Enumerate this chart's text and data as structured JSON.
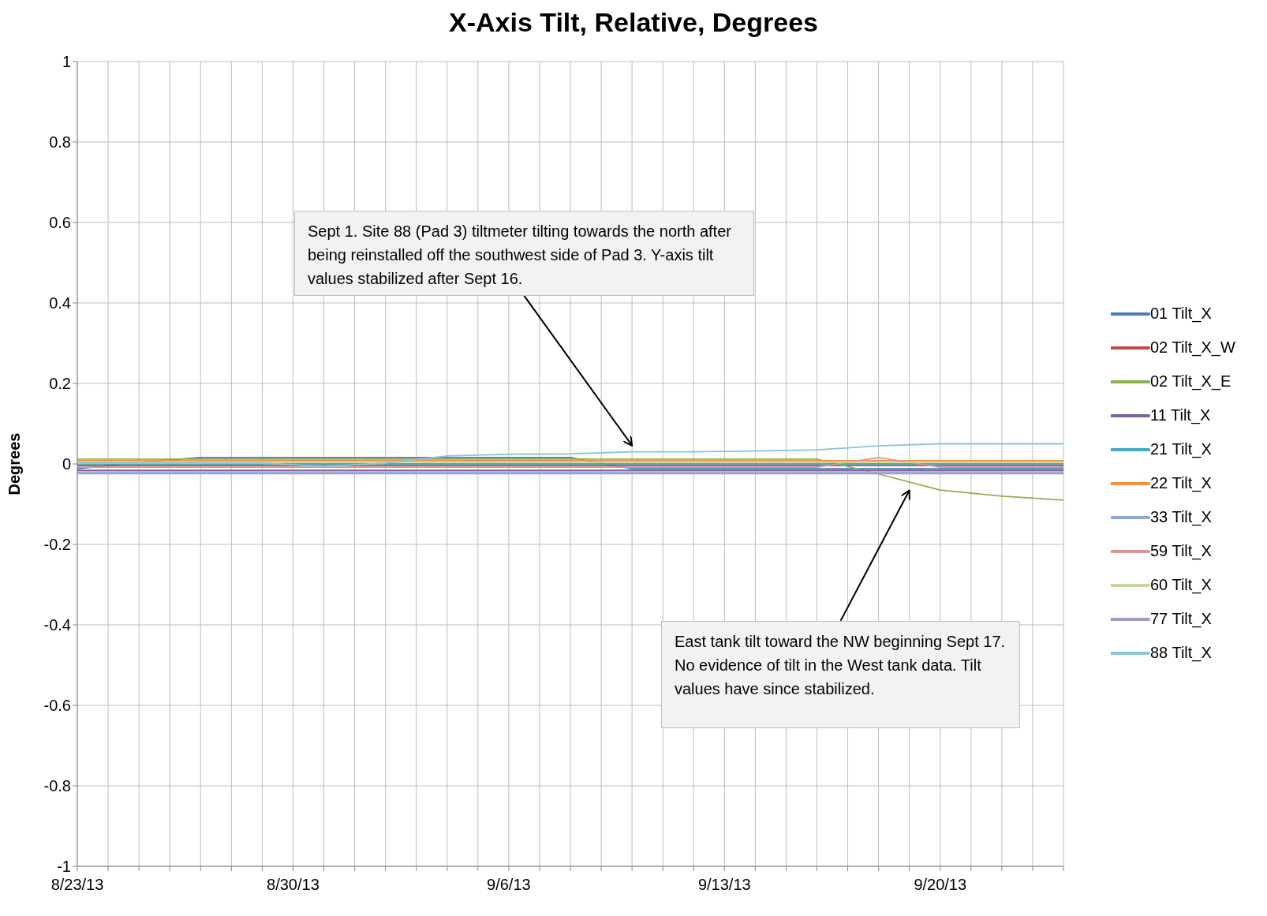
{
  "chart_data": {
    "type": "line",
    "title": "X-Axis Tilt, Relative, Degrees",
    "ylabel": "Degrees",
    "x": [
      "--08-23",
      "--08-25",
      "--08-27",
      "--08-29",
      "--08-31",
      "--09-02",
      "--09-04",
      "--09-06",
      "--09-08",
      "--09-10",
      "--09-12",
      "--09-14",
      "--09-16",
      "--09-18",
      "--09-20",
      "--09-22",
      "--09-24"
    ],
    "series": [
      {
        "name": "01 Tilt_X",
        "color": "#4a7ebb",
        "values": [
          -0.012,
          0.004,
          0.016,
          0.016,
          0.016,
          0.016,
          0.016,
          0.016,
          0.016,
          -0.012,
          -0.012,
          -0.012,
          -0.012,
          -0.012,
          -0.012,
          -0.012,
          -0.012
        ]
      },
      {
        "name": "02 Tilt_X_W",
        "color": "#be4b48",
        "values": [
          -0.004,
          -0.004,
          -0.004,
          -0.004,
          -0.004,
          -0.004,
          -0.004,
          -0.004,
          -0.004,
          -0.004,
          -0.004,
          -0.004,
          -0.004,
          -0.004,
          -0.004,
          -0.004,
          -0.004
        ]
      },
      {
        "name": "02 Tilt_X_E",
        "color": "#8eb055",
        "values": [
          0.012,
          0.012,
          0.012,
          0.012,
          0.012,
          0.012,
          0.012,
          0.012,
          0.012,
          0.012,
          0.012,
          0.012,
          0.012,
          -0.025,
          -0.065,
          -0.08,
          -0.09
        ]
      },
      {
        "name": "11 Tilt_X",
        "color": "#7d60a0",
        "values": [
          -0.016,
          -0.016,
          -0.016,
          -0.016,
          -0.016,
          -0.016,
          -0.016,
          -0.016,
          -0.016,
          -0.016,
          -0.016,
          -0.016,
          -0.016,
          -0.016,
          -0.016,
          -0.016,
          -0.016
        ]
      },
      {
        "name": "21 Tilt_X",
        "color": "#46aac5",
        "values": [
          0,
          0,
          0,
          0,
          0,
          0,
          0,
          0,
          0,
          0,
          0,
          0,
          0,
          0,
          0,
          0,
          0
        ]
      },
      {
        "name": "22 Tilt_X",
        "color": "#f69240",
        "values": [
          0.008,
          0.008,
          0.008,
          0.008,
          0.008,
          0.008,
          0.008,
          0.008,
          0.008,
          0.008,
          0.008,
          0.008,
          0.008,
          0.008,
          0.008,
          0.008,
          0.008
        ]
      },
      {
        "name": "33 Tilt_X",
        "color": "#91a8d0",
        "values": [
          -0.02,
          -0.02,
          -0.02,
          -0.02,
          -0.02,
          -0.02,
          -0.02,
          -0.02,
          -0.02,
          -0.02,
          -0.02,
          -0.02,
          -0.02,
          -0.02,
          -0.02,
          -0.02,
          -0.02
        ]
      },
      {
        "name": "59 Tilt_X",
        "color": "#d99694",
        "values": [
          -0.008,
          -0.008,
          -0.008,
          -0.008,
          -0.008,
          -0.008,
          -0.008,
          -0.008,
          -0.008,
          -0.008,
          -0.008,
          -0.008,
          -0.008,
          0.016,
          -0.008,
          -0.008,
          -0.008
        ]
      },
      {
        "name": "60 Tilt_X",
        "color": "#c3d69b",
        "values": [
          0.004,
          0.004,
          0.004,
          0.004,
          0.004,
          0.004,
          0.004,
          0.004,
          0.004,
          0.004,
          0.004,
          0.004,
          0.004,
          0.004,
          0.004,
          0.004,
          0.004
        ]
      },
      {
        "name": "77 Tilt_X",
        "color": "#a597be",
        "values": [
          -0.024,
          -0.024,
          -0.024,
          -0.024,
          -0.024,
          -0.024,
          -0.024,
          -0.024,
          -0.024,
          -0.024,
          -0.024,
          -0.024,
          -0.024,
          -0.024,
          -0.024,
          -0.024,
          -0.024
        ]
      },
      {
        "name": "88 Tilt_X",
        "color": "#8cc4d8",
        "values": [
          0.002,
          0.002,
          0.002,
          0.002,
          -0.006,
          0.002,
          0.02,
          0.024,
          0.025,
          0.03,
          0.03,
          0.032,
          0.035,
          0.045,
          0.05,
          0.05,
          0.05
        ]
      }
    ],
    "xlim": [
      "--08-23",
      "--09-24"
    ],
    "xticks": [
      {
        "value": "--08-23",
        "label": "8/23/13"
      },
      {
        "value": "--08-24",
        "label": null
      },
      {
        "value": "--08-25",
        "label": null
      },
      {
        "value": "--08-26",
        "label": null
      },
      {
        "value": "--08-27",
        "label": null
      },
      {
        "value": "--08-28",
        "label": null
      },
      {
        "value": "--08-29",
        "label": null
      },
      {
        "value": "--08-30",
        "label": "8/30/13"
      },
      {
        "value": "--08-31",
        "label": null
      },
      {
        "value": "--09-01",
        "label": null
      },
      {
        "value": "--09-02",
        "label": null
      },
      {
        "value": "--09-03",
        "label": null
      },
      {
        "value": "--09-04",
        "label": null
      },
      {
        "value": "--09-05",
        "label": null
      },
      {
        "value": "--09-06",
        "label": "9/6/13"
      },
      {
        "value": "--09-07",
        "label": null
      },
      {
        "value": "--09-08",
        "label": null
      },
      {
        "value": "--09-09",
        "label": null
      },
      {
        "value": "--09-10",
        "label": null
      },
      {
        "value": "--09-11",
        "label": null
      },
      {
        "value": "--09-12",
        "label": null
      },
      {
        "value": "--09-13",
        "label": "9/13/13"
      },
      {
        "value": "--09-14",
        "label": null
      },
      {
        "value": "--09-15",
        "label": null
      },
      {
        "value": "--09-16",
        "label": null
      },
      {
        "value": "--09-17",
        "label": null
      },
      {
        "value": "--09-18",
        "label": null
      },
      {
        "value": "--09-19",
        "label": null
      },
      {
        "value": "--09-20",
        "label": "9/20/13"
      },
      {
        "value": "--09-21",
        "label": null
      },
      {
        "value": "--09-22",
        "label": null
      },
      {
        "value": "--09-23",
        "label": null
      },
      {
        "value": "--09-24",
        "label": null
      }
    ],
    "ylim": [
      -1,
      1
    ],
    "yticks": [
      -1,
      -0.8,
      -0.6,
      -0.4,
      -0.2,
      0,
      0.2,
      0.4,
      0.6,
      0.8,
      1
    ],
    "grid": true,
    "legend": "right",
    "marker": "none",
    "line_style": "solid",
    "annotations": [
      {
        "text": "Sept 1. Site 88 (Pad 3) tiltmeter tilting towards the north after being reinstalled off the southwest side of Pad 3. Y-axis tilt values stabilized after Sept 16.",
        "x": "--09-10",
        "y": 0.03
      },
      {
        "text": "East tank tilt toward the NW beginning Sept 17. No evidence of tilt in the West tank data. Tilt values have since stabilized.",
        "x": "--09-19",
        "y": -0.05
      }
    ]
  }
}
